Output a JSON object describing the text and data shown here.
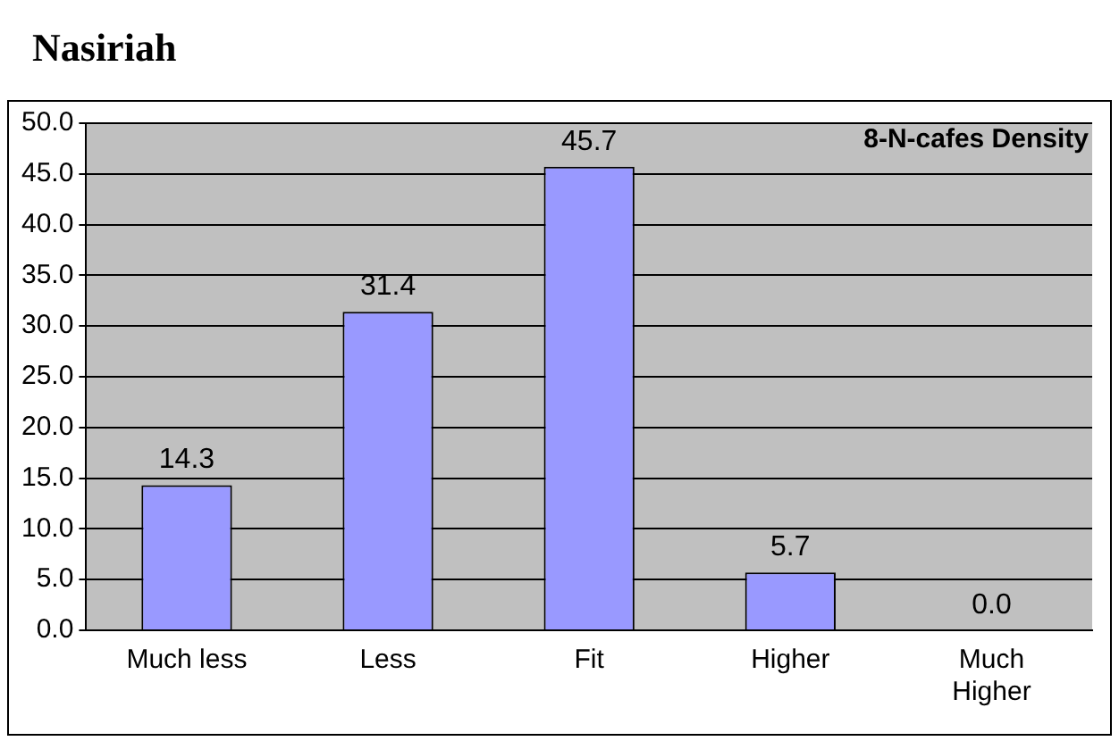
{
  "chart_data": {
    "type": "bar",
    "title": "Nasiriah",
    "subtitle": "8-N-cafes Density",
    "categories": [
      "Much less",
      "Less",
      "Fit",
      "Higher",
      "Much Higher"
    ],
    "values": [
      14.3,
      31.4,
      45.7,
      5.7,
      0.0
    ],
    "color": "#9999ff",
    "ylim": [
      0,
      50
    ],
    "yticks": [
      {
        "value": 0,
        "label": "0.0"
      },
      {
        "value": 5,
        "label": "5.0"
      },
      {
        "value": 10,
        "label": "10.0"
      },
      {
        "value": 15,
        "label": "15.0"
      },
      {
        "value": 20,
        "label": "20.0"
      },
      {
        "value": 25,
        "label": "25.0"
      },
      {
        "value": 30,
        "label": "30.0"
      },
      {
        "value": 35,
        "label": "35.0"
      },
      {
        "value": 40,
        "label": "40.0"
      },
      {
        "value": 45,
        "label": "45.0"
      },
      {
        "value": 50,
        "label": "50.0"
      }
    ],
    "grid": "y",
    "value_labels": [
      "14.3",
      "31.4",
      "45.7",
      "5.7",
      "0.0"
    ],
    "legend": false
  }
}
